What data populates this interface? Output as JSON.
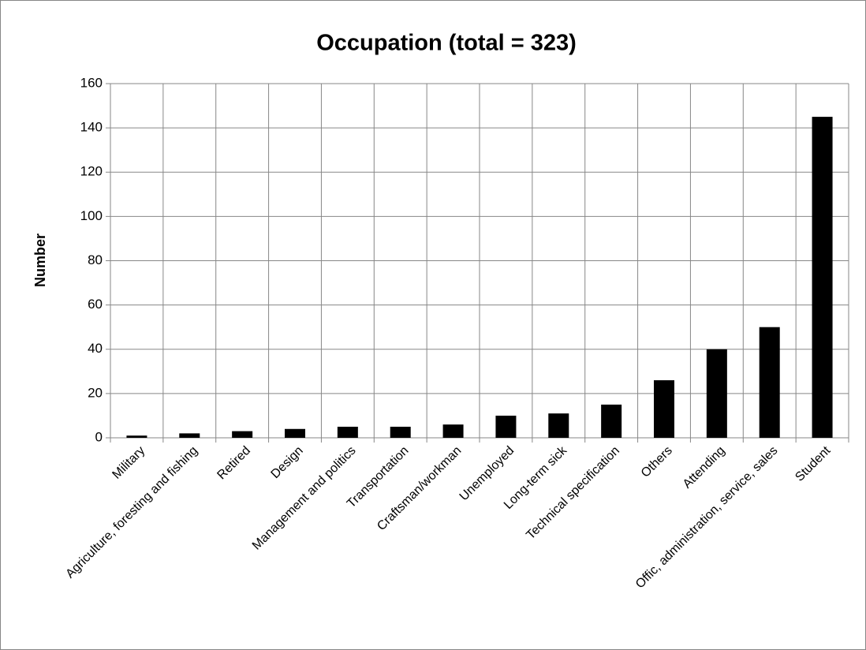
{
  "chart_data": {
    "type": "bar",
    "title": "Occupation (total = 323)",
    "y_label": "Number",
    "categories": [
      "Military",
      "Agriculture, foresting and fishing",
      "Retired",
      "Design",
      "Management and politics",
      "Transportation",
      "Craftsman/workman",
      "Unemployed",
      "Long-term sick",
      "Technical specification",
      "Others",
      "Attending",
      "Offic, administration, service, sales",
      "Student"
    ],
    "values": [
      1,
      2,
      3,
      4,
      5,
      5,
      6,
      10,
      11,
      15,
      26,
      40,
      50,
      145
    ],
    "color": "#000000",
    "ylim": [
      0,
      160
    ],
    "yticks": [
      0,
      20,
      40,
      60,
      80,
      100,
      120,
      140,
      160
    ],
    "grid": true
  }
}
